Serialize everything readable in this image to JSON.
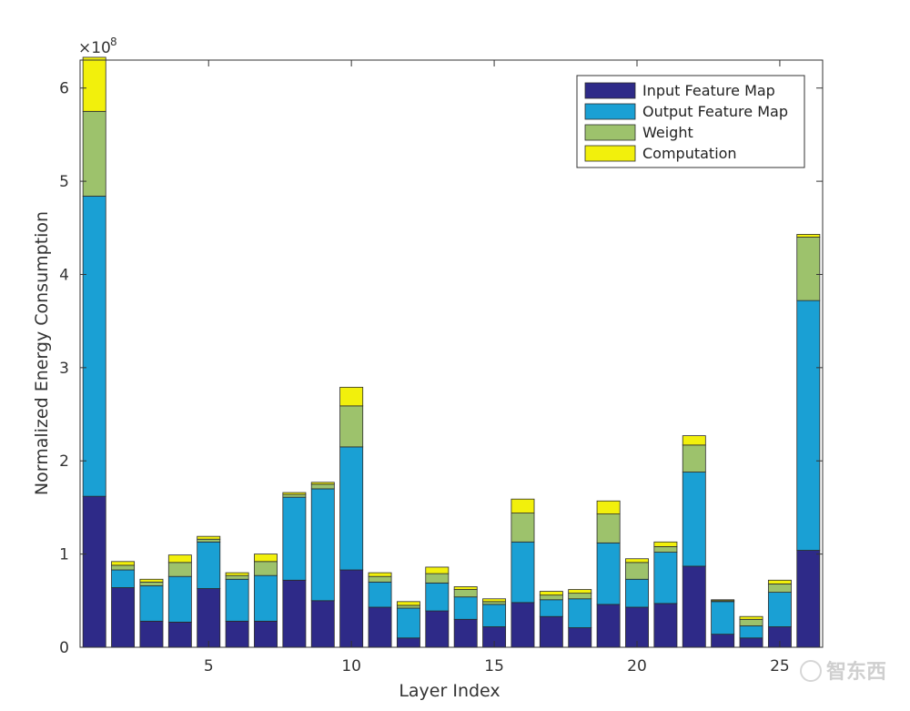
{
  "chart_data": {
    "type": "bar",
    "stacked": true,
    "xlabel": "Layer Index",
    "ylabel": "Normalized Energy Consumption",
    "y_exponent_label": "×10",
    "y_exponent_power": "8",
    "x": [
      1,
      2,
      3,
      4,
      5,
      6,
      7,
      8,
      9,
      10,
      11,
      12,
      13,
      14,
      15,
      16,
      17,
      18,
      19,
      20,
      21,
      22,
      23,
      24,
      25,
      26
    ],
    "xlim": [
      0.5,
      26.5
    ],
    "ylim": [
      0,
      6.3
    ],
    "xticks": [
      5,
      10,
      15,
      20,
      25
    ],
    "xtick_labels": [
      "5",
      "10",
      "15",
      "20",
      "25"
    ],
    "yticks": [
      0,
      1,
      2,
      3,
      4,
      5,
      6
    ],
    "ytick_labels": [
      "0",
      "1",
      "2",
      "3",
      "4",
      "5",
      "6"
    ],
    "series": [
      {
        "name": "Input Feature Map",
        "color": "#2e2a88",
        "values": [
          1.62,
          0.64,
          0.28,
          0.27,
          0.63,
          0.28,
          0.28,
          0.72,
          0.5,
          0.83,
          0.43,
          0.1,
          0.39,
          0.3,
          0.22,
          0.48,
          0.33,
          0.21,
          0.46,
          0.43,
          0.47,
          0.87,
          0.14,
          0.1,
          0.22,
          1.04
        ]
      },
      {
        "name": "Output Feature Map",
        "color": "#1aa0d4",
        "values": [
          3.22,
          0.19,
          0.38,
          0.49,
          0.5,
          0.45,
          0.49,
          0.89,
          1.2,
          1.32,
          0.27,
          0.32,
          0.3,
          0.24,
          0.24,
          0.65,
          0.18,
          0.31,
          0.66,
          0.3,
          0.55,
          1.01,
          0.35,
          0.13,
          0.37,
          2.68
        ]
      },
      {
        "name": "Weight",
        "color": "#9dc26c",
        "values": [
          0.91,
          0.05,
          0.04,
          0.15,
          0.03,
          0.04,
          0.15,
          0.03,
          0.05,
          0.44,
          0.06,
          0.03,
          0.1,
          0.08,
          0.03,
          0.31,
          0.05,
          0.06,
          0.31,
          0.18,
          0.06,
          0.29,
          0.01,
          0.07,
          0.09,
          0.68
        ]
      },
      {
        "name": "Computation",
        "color": "#f2f00c",
        "values": [
          0.58,
          0.04,
          0.03,
          0.08,
          0.03,
          0.03,
          0.08,
          0.02,
          0.02,
          0.2,
          0.04,
          0.04,
          0.07,
          0.03,
          0.03,
          0.15,
          0.04,
          0.04,
          0.14,
          0.04,
          0.05,
          0.1,
          0.01,
          0.03,
          0.04,
          0.03
        ]
      }
    ],
    "legend_position": "top-right",
    "grid": false
  },
  "watermark": {
    "text": "智东西"
  }
}
